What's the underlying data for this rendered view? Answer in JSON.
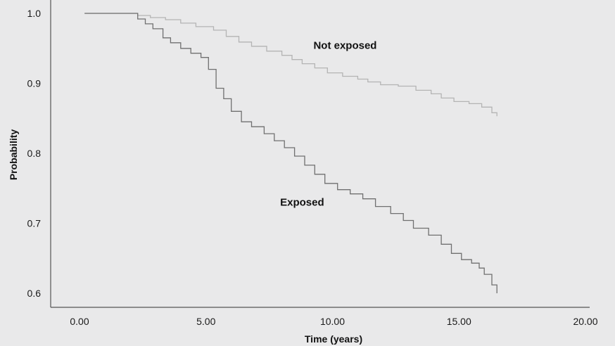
{
  "chart_data": {
    "type": "line",
    "title": "",
    "xlabel": "Time (years)",
    "ylabel": "Probability",
    "xlim": [
      0,
      20
    ],
    "ylim": [
      0.58,
      1.02
    ],
    "x_ticks": [
      0,
      5,
      10,
      15,
      20
    ],
    "x_tick_labels": [
      "0.00",
      "5.00",
      "10.00",
      "15.00",
      "20.00"
    ],
    "y_ticks": [
      0.6,
      0.7,
      0.8,
      0.9,
      1.0
    ],
    "y_tick_labels": [
      "0.6",
      "0.7",
      "0.8",
      "0.9",
      "1.0"
    ],
    "grid": false,
    "step": true,
    "series": [
      {
        "name": "Not exposed",
        "color": "#b4b4b4",
        "x": [
          0.2,
          2.1,
          2.3,
          2.8,
          3.4,
          4.0,
          4.6,
          5.3,
          5.8,
          6.3,
          6.8,
          7.4,
          8.0,
          8.4,
          8.8,
          9.3,
          9.8,
          10.4,
          11.0,
          11.4,
          11.9,
          12.6,
          13.3,
          13.9,
          14.3,
          14.8,
          15.4,
          15.9,
          16.3,
          16.5
        ],
        "y": [
          1.0,
          1.0,
          0.997,
          0.994,
          0.991,
          0.986,
          0.981,
          0.976,
          0.967,
          0.959,
          0.953,
          0.946,
          0.94,
          0.934,
          0.928,
          0.922,
          0.915,
          0.91,
          0.906,
          0.902,
          0.898,
          0.896,
          0.89,
          0.885,
          0.879,
          0.874,
          0.871,
          0.866,
          0.858,
          0.853
        ]
      },
      {
        "name": "Exposed",
        "color": "#707070",
        "x": [
          0.2,
          2.1,
          2.3,
          2.6,
          2.9,
          3.3,
          3.6,
          4.0,
          4.4,
          4.8,
          5.1,
          5.4,
          5.7,
          6.0,
          6.4,
          6.8,
          7.3,
          7.7,
          8.1,
          8.5,
          8.9,
          9.3,
          9.7,
          10.2,
          10.7,
          11.2,
          11.7,
          12.3,
          12.8,
          13.2,
          13.8,
          14.3,
          14.7,
          15.1,
          15.5,
          15.8,
          16.0,
          16.3,
          16.5
        ],
        "y": [
          1.0,
          1.0,
          0.992,
          0.985,
          0.978,
          0.965,
          0.958,
          0.95,
          0.943,
          0.937,
          0.92,
          0.893,
          0.878,
          0.86,
          0.845,
          0.838,
          0.828,
          0.818,
          0.808,
          0.796,
          0.783,
          0.77,
          0.757,
          0.748,
          0.742,
          0.735,
          0.724,
          0.714,
          0.704,
          0.693,
          0.683,
          0.67,
          0.657,
          0.648,
          0.643,
          0.636,
          0.627,
          0.612,
          0.6
        ]
      }
    ],
    "annotations": [
      {
        "text": "Not exposed",
        "x": 10.5,
        "y": 0.949
      },
      {
        "text": "Exposed",
        "x": 8.8,
        "y": 0.725
      }
    ]
  }
}
